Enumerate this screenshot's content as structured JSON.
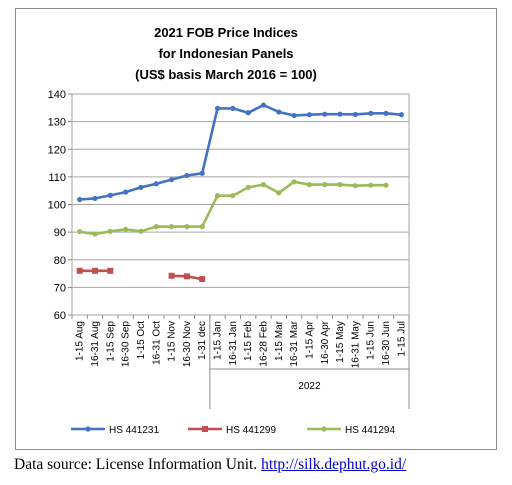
{
  "chart_data": {
    "type": "line",
    "title_lines": [
      "2021 FOB Price Indices",
      "for Indonesian Panels",
      "(US$ basis March 2016 = 100)"
    ],
    "x": [
      "1-15 Aug",
      "16-31 Aug",
      "1-15 Sep",
      "16-30 Sep",
      "1-15 Oct",
      "16-31 Oct",
      "1-15 Nov",
      "16-30 Nov",
      "1-31 dec",
      "1-15 Jan",
      "16-31 Jan",
      "1-15 Feb",
      "16-28 Feb",
      "1-15 Mar",
      "16-31 Mar",
      "1-15 Apr",
      "16-30 Apr",
      "1-15 May",
      "16-31 May",
      "1-15 Jun",
      "16-30 Jun",
      "1-15 Jul"
    ],
    "year_group": {
      "label": "2022",
      "start_index": 9,
      "end_index": 21
    },
    "ylim": [
      60,
      140
    ],
    "yticks": [
      60,
      70,
      80,
      90,
      100,
      110,
      120,
      130,
      140
    ],
    "grid": true,
    "legend_position": "bottom",
    "series": [
      {
        "name": "HS 441231",
        "color": "#4472c4",
        "values": [
          101.8,
          102.2,
          103.3,
          104.5,
          106.2,
          107.5,
          109.0,
          110.5,
          111.3,
          134.8,
          134.8,
          133.2,
          136.0,
          133.5,
          132.2,
          132.5,
          132.7,
          132.7,
          132.6,
          133.0,
          133.0,
          132.5
        ]
      },
      {
        "name": "HS 441299",
        "color": "#c0504d",
        "values": [
          76.0,
          76.0,
          76.0,
          null,
          null,
          null,
          74.2,
          74.0,
          73.0,
          null,
          null,
          null,
          null,
          null,
          null,
          null,
          null,
          null,
          null,
          null,
          null,
          null
        ]
      },
      {
        "name": "HS 441294",
        "color": "#9bbb59",
        "values": [
          90.2,
          89.3,
          90.3,
          91.0,
          90.3,
          92.0,
          92.0,
          92.0,
          92.0,
          103.2,
          103.2,
          106.2,
          107.2,
          104.2,
          108.2,
          107.2,
          107.2,
          107.2,
          106.8,
          107.0,
          107.0,
          null
        ]
      }
    ]
  },
  "source": {
    "prefix": "Data source: License Information Unit. ",
    "link": "http://silk.dephut.go.id/"
  }
}
